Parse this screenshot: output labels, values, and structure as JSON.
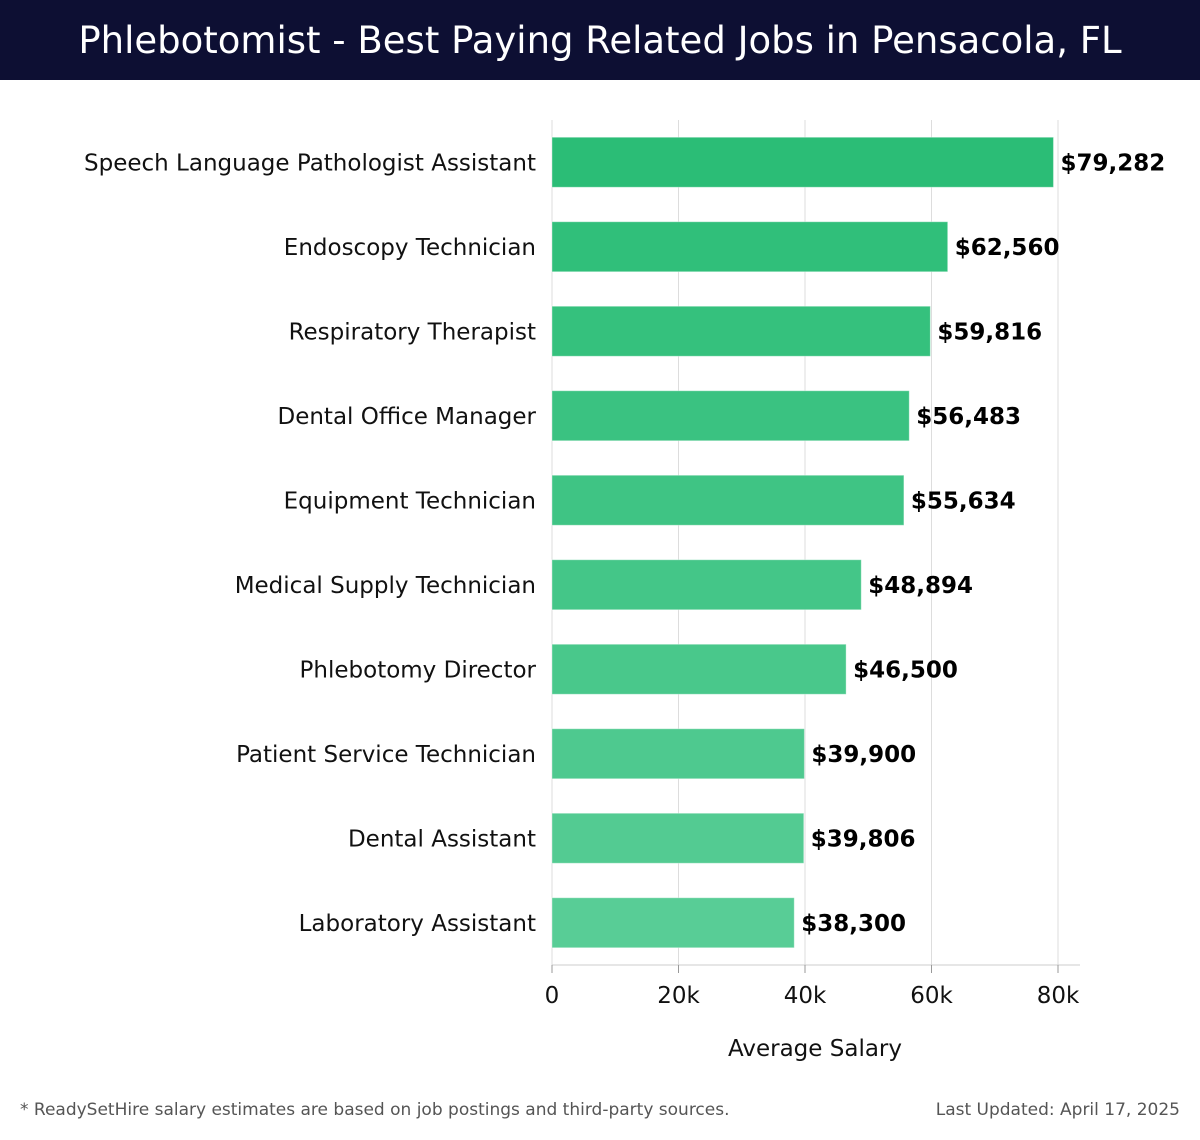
{
  "header": {
    "title": "Phlebotomist - Best Paying Related Jobs in Pensacola, FL"
  },
  "footer": {
    "note": "* ReadySetHire salary estimates are based on job postings and third-party sources.",
    "updated": "Last Updated: April 17, 2025"
  },
  "colors": {
    "header_bg": "#0d0f33",
    "bar_top": "#2bbd76",
    "bar_bottom": "#58cd96",
    "grid": "#dddddd",
    "label_text": "#111111",
    "value_text": "#000000"
  },
  "chart_data": {
    "type": "bar",
    "orientation": "horizontal",
    "title": "Phlebotomist - Best Paying Related Jobs in Pensacola, FL",
    "xlabel": "Average Salary",
    "ylabel": "",
    "xlim": [
      0,
      80000
    ],
    "x_ticks": [
      0,
      20000,
      40000,
      60000,
      80000
    ],
    "x_tick_labels": [
      "0",
      "20k",
      "40k",
      "60k",
      "80k"
    ],
    "grid": true,
    "categories": [
      "Speech Language Pathologist Assistant",
      "Endoscopy Technician",
      "Respiratory Therapist",
      "Dental Office Manager",
      "Equipment Technician",
      "Medical Supply Technician",
      "Phlebotomy Director",
      "Patient Service Technician",
      "Dental Assistant",
      "Laboratory Assistant"
    ],
    "values": [
      79282,
      62560,
      59816,
      56483,
      55634,
      48894,
      46500,
      39900,
      39806,
      38300
    ],
    "value_labels": [
      "$79,282",
      "$62,560",
      "$59,816",
      "$56,483",
      "$55,634",
      "$48,894",
      "$46,500",
      "$39,900",
      "$39,806",
      "$38,300"
    ]
  }
}
